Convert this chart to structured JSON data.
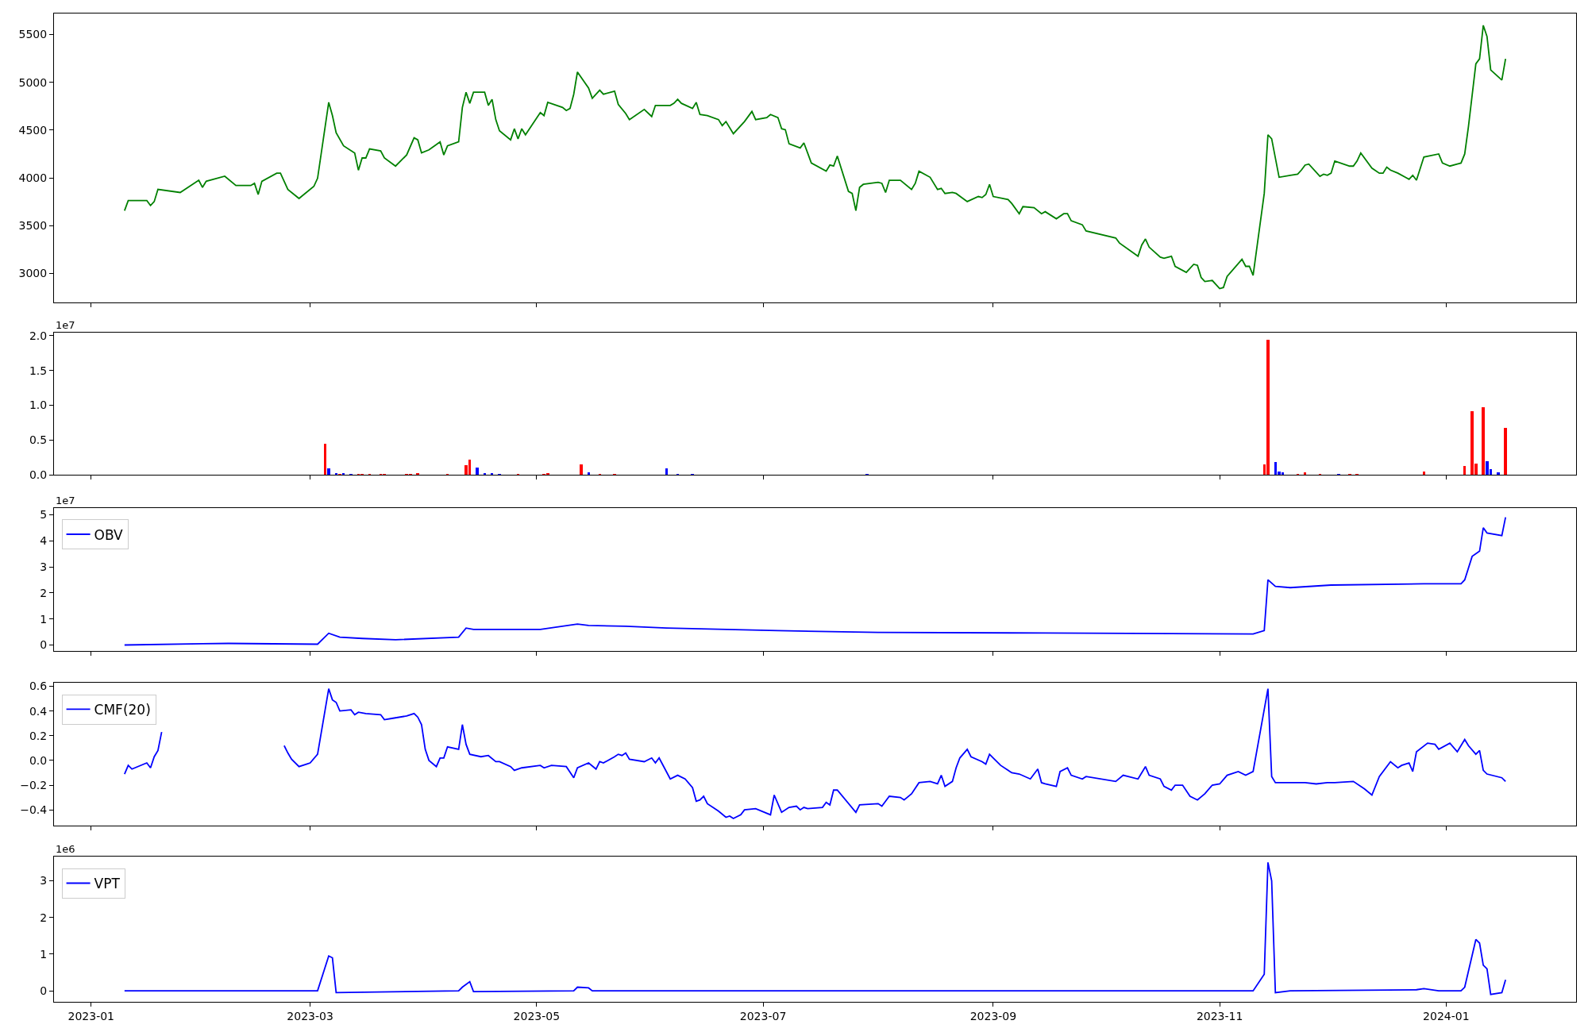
{
  "chart_data": [
    {
      "type": "line",
      "tick_labels": "y",
      "legend": false,
      "xlim": [
        "2022-12-22",
        "2024-02-05"
      ],
      "ylim": [
        2700,
        5720
      ],
      "xticks": [
        {
          "value": "2023-01-01",
          "label": null
        },
        {
          "value": "2023-03-01",
          "label": null
        },
        {
          "value": "2023-05-01",
          "label": null
        },
        {
          "value": "2023-07-01",
          "label": null
        },
        {
          "value": "2023-09-01",
          "label": null
        },
        {
          "value": "2023-11-01",
          "label": null
        },
        {
          "value": "2024-01-01",
          "label": null
        }
      ],
      "yticks": [
        3000,
        3500,
        4000,
        4500,
        5000,
        5500
      ],
      "series": [
        {
          "color": "#008000",
          "x": [
            "2023-01-10",
            "2023-01-11",
            "2023-01-12",
            "2023-01-16",
            "2023-01-17",
            "2023-01-18",
            "2023-01-19",
            "2023-01-25",
            "2023-01-30",
            "2023-01-31",
            "2023-02-01",
            "2023-02-06",
            "2023-02-09",
            "2023-02-13",
            "2023-02-14",
            "2023-02-15",
            "2023-02-16",
            "2023-02-20",
            "2023-02-21",
            "2023-02-23",
            "2023-02-26",
            "2023-03-02",
            "2023-03-03",
            "2023-03-06",
            "2023-03-07",
            "2023-03-08",
            "2023-03-10",
            "2023-03-13",
            "2023-03-14",
            "2023-03-15",
            "2023-03-16",
            "2023-03-17",
            "2023-03-20",
            "2023-03-21",
            "2023-03-24",
            "2023-03-27",
            "2023-03-29",
            "2023-03-30",
            "2023-03-31",
            "2023-04-02",
            "2023-04-05",
            "2023-04-06",
            "2023-04-07",
            "2023-04-10",
            "2023-04-11",
            "2023-04-12",
            "2023-04-13",
            "2023-04-14",
            "2023-04-17",
            "2023-04-18",
            "2023-04-19",
            "2023-04-20",
            "2023-04-21",
            "2023-04-24",
            "2023-04-25",
            "2023-04-26",
            "2023-04-27",
            "2023-04-28",
            "2023-05-02",
            "2023-05-03",
            "2023-05-04",
            "2023-05-08",
            "2023-05-09",
            "2023-05-10",
            "2023-05-11",
            "2023-05-12",
            "2023-05-15",
            "2023-05-16",
            "2023-05-18",
            "2023-05-19",
            "2023-05-22",
            "2023-05-23",
            "2023-05-25",
            "2023-05-26",
            "2023-05-30",
            "2023-06-01",
            "2023-06-02",
            "2023-06-06",
            "2023-06-07",
            "2023-06-08",
            "2023-06-09",
            "2023-06-12",
            "2023-06-13",
            "2023-06-14",
            "2023-06-16",
            "2023-06-19",
            "2023-06-20",
            "2023-06-21",
            "2023-06-23",
            "2023-06-26",
            "2023-06-28",
            "2023-06-29",
            "2023-07-02",
            "2023-07-03",
            "2023-07-05",
            "2023-07-06",
            "2023-07-07",
            "2023-07-08",
            "2023-07-11",
            "2023-07-12",
            "2023-07-13",
            "2023-07-14",
            "2023-07-18",
            "2023-07-19",
            "2023-07-20",
            "2023-07-21",
            "2023-07-24",
            "2023-07-25",
            "2023-07-26",
            "2023-07-27",
            "2023-07-28",
            "2023-08-01",
            "2023-08-02",
            "2023-08-03",
            "2023-08-04",
            "2023-08-07",
            "2023-08-10",
            "2023-08-11",
            "2023-08-12",
            "2023-08-15",
            "2023-08-17",
            "2023-08-18",
            "2023-08-19",
            "2023-08-21",
            "2023-08-22",
            "2023-08-25",
            "2023-08-28",
            "2023-08-29",
            "2023-08-30",
            "2023-08-31",
            "2023-09-01",
            "2023-09-05",
            "2023-09-06",
            "2023-09-08",
            "2023-09-09",
            "2023-09-12",
            "2023-09-14",
            "2023-09-15",
            "2023-09-18",
            "2023-09-20",
            "2023-09-21",
            "2023-09-22",
            "2023-09-25",
            "2023-09-26",
            "2023-10-04",
            "2023-10-05",
            "2023-10-10",
            "2023-10-11",
            "2023-10-12",
            "2023-10-13",
            "2023-10-16",
            "2023-10-17",
            "2023-10-19",
            "2023-10-20",
            "2023-10-23",
            "2023-10-25",
            "2023-10-26",
            "2023-10-27",
            "2023-10-28",
            "2023-10-30",
            "2023-11-01",
            "2023-11-02",
            "2023-11-03",
            "2023-11-07",
            "2023-11-08",
            "2023-11-09",
            "2023-11-10",
            "2023-11-13",
            "2023-11-14",
            "2023-11-15",
            "2023-11-17",
            "2023-11-20",
            "2023-11-22",
            "2023-11-23",
            "2023-11-24",
            "2023-11-25",
            "2023-11-28",
            "2023-11-29",
            "2023-11-30",
            "2023-12-01",
            "2023-12-02",
            "2023-12-06",
            "2023-12-07",
            "2023-12-08",
            "2023-12-09",
            "2023-12-12",
            "2023-12-14",
            "2023-12-15",
            "2023-12-16",
            "2023-12-17",
            "2023-12-19",
            "2023-12-21",
            "2023-12-22",
            "2023-12-23",
            "2023-12-24",
            "2023-12-26",
            "2023-12-30",
            "2023-12-31",
            "2024-01-02",
            "2024-01-04",
            "2024-01-05",
            "2024-01-06",
            "2024-01-07",
            "2024-01-09",
            "2024-01-10",
            "2024-01-11",
            "2024-01-12",
            "2024-01-13",
            "2024-01-16",
            "2024-01-17"
          ],
          "values": [
            3657,
            3763,
            3763,
            3763,
            3710,
            3752,
            3879,
            3847,
            3975,
            3900,
            3964,
            4017,
            3920,
            3920,
            3943,
            3826,
            3964,
            4049,
            4049,
            3879,
            3784,
            3911,
            3996,
            4790,
            4652,
            4472,
            4335,
            4260,
            4080,
            4208,
            4208,
            4303,
            4282,
            4208,
            4123,
            4240,
            4419,
            4398,
            4261,
            4293,
            4377,
            4240,
            4335,
            4377,
            4737,
            4896,
            4780,
            4896,
            4896,
            4758,
            4822,
            4610,
            4493,
            4398,
            4514,
            4408,
            4514,
            4451,
            4684,
            4652,
            4790,
            4737,
            4705,
            4726,
            4875,
            5108,
            4939,
            4832,
            4917,
            4875,
            4907,
            4769,
            4674,
            4610,
            4716,
            4642,
            4758,
            4758,
            4780,
            4822,
            4780,
            4726,
            4790,
            4663,
            4652,
            4610,
            4547,
            4589,
            4462,
            4589,
            4695,
            4610,
            4631,
            4663,
            4631,
            4514,
            4504,
            4356,
            4313,
            4366,
            4261,
            4155,
            4070,
            4134,
            4123,
            4229,
            3858,
            3837,
            3657,
            3900,
            3932,
            3953,
            3943,
            3847,
            3975,
            3975,
            3879,
            3943,
            4070,
            4006,
            3879,
            3890,
            3837,
            3847,
            3837,
            3752,
            3805,
            3794,
            3826,
            3932,
            3805,
            3773,
            3731,
            3625,
            3699,
            3688,
            3625,
            3646,
            3572,
            3625,
            3625,
            3551,
            3509,
            3445,
            3371,
            3318,
            3180,
            3297,
            3360,
            3275,
            3170,
            3159,
            3180,
            3074,
            3011,
            3095,
            3085,
            2958,
            2915,
            2926,
            2841,
            2852,
            2968,
            3148,
            3074,
            3074,
            2980,
            3837,
            4451,
            4409,
            4006,
            4027,
            4038,
            4081,
            4134,
            4144,
            4017,
            4038,
            4027,
            4049,
            4176,
            4123,
            4123,
            4176,
            4260,
            4102,
            4049,
            4049,
            4112,
            4081,
            4049,
            4006,
            3985,
            4027,
            3975,
            4218,
            4250,
            4155,
            4123,
            4144,
            4155,
            4250,
            4536,
            5193,
            5246,
            5596,
            5479,
            5129,
            5023,
            5246
          ]
        }
      ]
    },
    {
      "type": "bar",
      "tick_labels": "y",
      "legend": false,
      "xlim": [
        "2022-12-22",
        "2024-02-05"
      ],
      "ylim": [
        0,
        2.04
      ],
      "xticks": [
        {
          "value": "2023-01-01",
          "label": null
        },
        {
          "value": "2023-03-01",
          "label": null
        },
        {
          "value": "2023-05-01",
          "label": null
        },
        {
          "value": "2023-07-01",
          "label": null
        },
        {
          "value": "2023-09-01",
          "label": null
        },
        {
          "value": "2023-11-01",
          "label": null
        },
        {
          "value": "2024-01-01",
          "label": null
        }
      ],
      "yticks": [
        {
          "value": 0,
          "label": "0.0"
        },
        {
          "value": 0.5,
          "label": "0.5"
        },
        {
          "value": 1,
          "label": "1.0"
        },
        {
          "value": 1.5,
          "label": "1.5"
        },
        {
          "value": 2,
          "label": "2.0"
        }
      ],
      "annotations": [
        "1e7"
      ],
      "series": [
        {
          "color": "#ff0000",
          "x": [
            "2023-03-05",
            "2023-03-09",
            "2023-03-14",
            "2023-03-15",
            "2023-03-17",
            "2023-03-20",
            "2023-03-21",
            "2023-03-27",
            "2023-03-28",
            "2023-03-30",
            "2023-04-07",
            "2023-04-12",
            "2023-04-13",
            "2023-04-26",
            "2023-05-03",
            "2023-05-04",
            "2023-05-13",
            "2023-05-18",
            "2023-05-22",
            "2023-11-13",
            "2023-11-14",
            "2023-11-22",
            "2023-11-24",
            "2023-11-28",
            "2023-12-06",
            "2023-12-08",
            "2023-12-26",
            "2024-01-06",
            "2024-01-08",
            "2024-01-09",
            "2024-01-11",
            "2024-01-17"
          ],
          "values": [
            0.45,
            0.02,
            0.02,
            0.02,
            0.02,
            0.02,
            0.02,
            0.02,
            0.02,
            0.03,
            0.02,
            0.14,
            0.22,
            0.02,
            0.02,
            0.03,
            0.15,
            0.02,
            0.02,
            0.15,
            1.94,
            0.02,
            0.04,
            0.02,
            0.02,
            0.02,
            0.05,
            0.13,
            0.91,
            0.16,
            0.965,
            0.67
          ]
        },
        {
          "color": "#0000ff",
          "x": [
            "2023-03-06",
            "2023-03-08",
            "2023-03-10",
            "2023-03-12",
            "2023-04-15",
            "2023-04-17",
            "2023-04-19",
            "2023-04-21",
            "2023-05-15",
            "2023-06-05",
            "2023-06-08",
            "2023-06-12",
            "2023-07-29",
            "2023-11-16",
            "2023-11-17",
            "2023-11-18",
            "2023-12-03",
            "2024-01-12",
            "2024-01-13",
            "2024-01-15"
          ],
          "values": [
            0.09,
            0.03,
            0.03,
            0.02,
            0.1,
            0.03,
            0.03,
            0.02,
            0.04,
            0.09,
            0.02,
            0.02,
            0.02,
            0.18,
            0.05,
            0.04,
            0.02,
            0.2,
            0.08,
            0.04
          ]
        }
      ]
    },
    {
      "type": "line",
      "tick_labels": "y",
      "legend": "top left",
      "xlim": [
        "2022-12-22",
        "2024-02-05"
      ],
      "ylim": [
        -0.23,
        5.27
      ],
      "xticks": [
        {
          "value": "2023-01-01",
          "label": null
        },
        {
          "value": "2023-03-01",
          "label": null
        },
        {
          "value": "2023-05-01",
          "label": null
        },
        {
          "value": "2023-07-01",
          "label": null
        },
        {
          "value": "2023-09-01",
          "label": null
        },
        {
          "value": "2023-11-01",
          "label": null
        },
        {
          "value": "2024-01-01",
          "label": null
        }
      ],
      "yticks": [
        0,
        1,
        2,
        3,
        4,
        5
      ],
      "annotations": [
        "1e7"
      ],
      "series": [
        {
          "name": "OBV",
          "color": "#0000ff",
          "x": [
            "2023-01-10",
            "2023-01-31",
            "2023-02-07",
            "2023-03-03",
            "2023-03-06",
            "2023-03-09",
            "2023-03-15",
            "2023-03-24",
            "2023-04-10",
            "2023-04-12",
            "2023-04-14",
            "2023-05-02",
            "2023-05-12",
            "2023-05-15",
            "2023-05-25",
            "2023-06-05",
            "2023-07-05",
            "2023-08-01",
            "2023-09-15",
            "2023-11-10",
            "2023-11-13",
            "2023-11-14",
            "2023-11-16",
            "2023-11-20",
            "2023-12-01",
            "2023-12-26",
            "2024-01-05",
            "2024-01-06",
            "2024-01-08",
            "2024-01-10",
            "2024-01-11",
            "2024-01-12",
            "2024-01-16",
            "2024-01-17"
          ],
          "values": [
            0,
            0.05,
            0.06,
            0.03,
            0.45,
            0.3,
            0.25,
            0.2,
            0.3,
            0.65,
            0.6,
            0.6,
            0.8,
            0.75,
            0.72,
            0.65,
            0.55,
            0.48,
            0.46,
            0.42,
            0.55,
            2.5,
            2.25,
            2.2,
            2.3,
            2.35,
            2.35,
            2.5,
            3.4,
            3.6,
            4.5,
            4.3,
            4.2,
            4.9
          ]
        }
      ]
    },
    {
      "type": "line",
      "tick_labels": "y",
      "legend": "top left",
      "xlim": [
        "2022-12-22",
        "2024-02-05"
      ],
      "ylim": [
        -0.53,
        0.63
      ],
      "xticks": [
        {
          "value": "2023-01-01",
          "label": null
        },
        {
          "value": "2023-03-01",
          "label": null
        },
        {
          "value": "2023-05-01",
          "label": null
        },
        {
          "value": "2023-07-01",
          "label": null
        },
        {
          "value": "2023-09-01",
          "label": null
        },
        {
          "value": "2023-11-01",
          "label": null
        },
        {
          "value": "2024-01-01",
          "label": null
        }
      ],
      "yticks": [
        {
          "value": -0.4,
          "label": "−0.4"
        },
        {
          "value": -0.2,
          "label": "−0.2"
        },
        {
          "value": 0,
          "label": "0.0"
        },
        {
          "value": 0.2,
          "label": "0.2"
        },
        {
          "value": 0.4,
          "label": "0.4"
        },
        {
          "value": 0.6,
          "label": "0.6"
        }
      ],
      "series": [
        {
          "name": "CMF(20)",
          "color": "#0000ff",
          "x": [
            "2023-01-10",
            "2023-01-11",
            "2023-01-12",
            "2023-01-16",
            "2023-01-17",
            "2023-01-18",
            "2023-01-19",
            "2023-01-20",
            "2023-02-05",
            "2023-02-22",
            "2023-02-23",
            "2023-02-24",
            "2023-02-26",
            "2023-02-28",
            "2023-03-01",
            "2023-03-03",
            "2023-03-06",
            "2023-03-07",
            "2023-03-08",
            "2023-03-09",
            "2023-03-12",
            "2023-03-13",
            "2023-03-14",
            "2023-03-16",
            "2023-03-20",
            "2023-03-21",
            "2023-03-23",
            "2023-03-27",
            "2023-03-29",
            "2023-03-30",
            "2023-03-31",
            "2023-04-01",
            "2023-04-02",
            "2023-04-04",
            "2023-04-05",
            "2023-04-06",
            "2023-04-07",
            "2023-04-10",
            "2023-04-11",
            "2023-04-12",
            "2023-04-13",
            "2023-04-16",
            "2023-04-18",
            "2023-04-20",
            "2023-04-21",
            "2023-04-24",
            "2023-04-25",
            "2023-04-27",
            "2023-05-02",
            "2023-05-03",
            "2023-05-05",
            "2023-05-09",
            "2023-05-11",
            "2023-05-12",
            "2023-05-15",
            "2023-05-17",
            "2023-05-18",
            "2023-05-19",
            "2023-05-22",
            "2023-05-23",
            "2023-05-24",
            "2023-05-25",
            "2023-05-26",
            "2023-05-30",
            "2023-06-01",
            "2023-06-02",
            "2023-06-03",
            "2023-06-06",
            "2023-06-08",
            "2023-06-10",
            "2023-06-12",
            "2023-06-13",
            "2023-06-14",
            "2023-06-15",
            "2023-06-16",
            "2023-06-19",
            "2023-06-21",
            "2023-06-22",
            "2023-06-23",
            "2023-06-25",
            "2023-06-26",
            "2023-06-29",
            "2023-07-03",
            "2023-07-04",
            "2023-07-06",
            "2023-07-08",
            "2023-07-10",
            "2023-07-11",
            "2023-07-12",
            "2023-07-13",
            "2023-07-17",
            "2023-07-18",
            "2023-07-19",
            "2023-07-20",
            "2023-07-21",
            "2023-07-26",
            "2023-07-27",
            "2023-08-01",
            "2023-08-02",
            "2023-08-03",
            "2023-08-04",
            "2023-08-07",
            "2023-08-08",
            "2023-08-10",
            "2023-08-12",
            "2023-08-15",
            "2023-08-17",
            "2023-08-18",
            "2023-08-19",
            "2023-08-21",
            "2023-08-22",
            "2023-08-23",
            "2023-08-25",
            "2023-08-26",
            "2023-08-29",
            "2023-08-30",
            "2023-08-31",
            "2023-09-01",
            "2023-09-03",
            "2023-09-06",
            "2023-09-08",
            "2023-09-11",
            "2023-09-13",
            "2023-09-14",
            "2023-09-15",
            "2023-09-18",
            "2023-09-19",
            "2023-09-21",
            "2023-09-22",
            "2023-09-25",
            "2023-09-26",
            "2023-10-04",
            "2023-10-06",
            "2023-10-10",
            "2023-10-12",
            "2023-10-13",
            "2023-10-16",
            "2023-10-17",
            "2023-10-19",
            "2023-10-20",
            "2023-10-22",
            "2023-10-24",
            "2023-10-26",
            "2023-10-28",
            "2023-10-30",
            "2023-11-01",
            "2023-11-03",
            "2023-11-06",
            "2023-11-08",
            "2023-11-10",
            "2023-11-14",
            "2023-11-15",
            "2023-11-16",
            "2023-11-20",
            "2023-11-24",
            "2023-11-27",
            "2023-11-30",
            "2023-12-02",
            "2023-12-07",
            "2023-12-10",
            "2023-12-12",
            "2023-12-14",
            "2023-12-17",
            "2023-12-19",
            "2023-12-20",
            "2023-12-22",
            "2023-12-23",
            "2023-12-24",
            "2023-12-27",
            "2023-12-29",
            "2023-12-30",
            "2024-01-02",
            "2024-01-04",
            "2024-01-06",
            "2024-01-07",
            "2024-01-09",
            "2024-01-10",
            "2024-01-11",
            "2024-01-12",
            "2024-01-16",
            "2024-01-17"
          ],
          "values": [
            -0.11,
            -0.04,
            -0.07,
            -0.02,
            -0.06,
            0.03,
            0.08,
            0.23,
            null,
            0.12,
            0.06,
            0.01,
            -0.05,
            -0.03,
            -0.02,
            0.05,
            0.58,
            0.49,
            0.47,
            0.4,
            0.41,
            0.37,
            0.39,
            0.38,
            0.37,
            0.33,
            0.34,
            0.36,
            0.38,
            0.35,
            0.29,
            0.09,
            0.0,
            -0.05,
            0.02,
            0.02,
            0.11,
            0.09,
            0.29,
            0.13,
            0.05,
            0.03,
            0.04,
            -0.01,
            -0.01,
            -0.05,
            -0.08,
            -0.06,
            -0.04,
            -0.06,
            -0.04,
            -0.05,
            -0.14,
            -0.06,
            -0.02,
            -0.07,
            -0.01,
            -0.02,
            0.03,
            0.05,
            0.04,
            0.06,
            0.01,
            -0.01,
            0.02,
            -0.02,
            0.02,
            -0.15,
            -0.12,
            -0.15,
            -0.22,
            -0.33,
            -0.32,
            -0.29,
            -0.35,
            -0.41,
            -0.46,
            -0.45,
            -0.47,
            -0.44,
            -0.4,
            -0.39,
            -0.44,
            -0.28,
            -0.42,
            -0.38,
            -0.37,
            -0.4,
            -0.38,
            -0.39,
            -0.38,
            -0.34,
            -0.36,
            -0.24,
            -0.24,
            -0.42,
            -0.36,
            -0.35,
            -0.37,
            -0.33,
            -0.29,
            -0.3,
            -0.32,
            -0.27,
            -0.18,
            -0.17,
            -0.19,
            -0.12,
            -0.21,
            -0.17,
            -0.06,
            0.02,
            0.09,
            0.03,
            -0.01,
            -0.03,
            0.05,
            0.02,
            -0.04,
            -0.1,
            -0.11,
            -0.15,
            -0.07,
            -0.18,
            -0.19,
            -0.21,
            -0.09,
            -0.06,
            -0.12,
            -0.15,
            -0.13,
            -0.17,
            -0.12,
            -0.15,
            -0.05,
            -0.12,
            -0.15,
            -0.21,
            -0.24,
            -0.2,
            -0.2,
            -0.29,
            -0.32,
            -0.27,
            -0.2,
            -0.19,
            -0.12,
            -0.09,
            -0.12,
            -0.09,
            0.58,
            -0.13,
            -0.18,
            -0.18,
            -0.18,
            -0.19,
            -0.18,
            -0.18,
            -0.17,
            -0.23,
            -0.28,
            -0.13,
            -0.01,
            -0.06,
            -0.04,
            -0.02,
            -0.09,
            0.07,
            0.14,
            0.13,
            0.09,
            0.14,
            0.07,
            0.17,
            0.12,
            0.05,
            0.08,
            -0.08,
            -0.11,
            -0.14,
            -0.17
          ]
        }
      ]
    },
    {
      "type": "line",
      "legend": "top left",
      "xlim": [
        "2022-12-22",
        "2024-02-05"
      ],
      "ylim": [
        -0.3,
        3.66
      ],
      "xticks": [
        {
          "value": "2023-01-01",
          "label": "2023-01"
        },
        {
          "value": "2023-03-01",
          "label": "2023-03"
        },
        {
          "value": "2023-05-01",
          "label": "2023-05"
        },
        {
          "value": "2023-07-01",
          "label": "2023-07"
        },
        {
          "value": "2023-09-01",
          "label": "2023-09"
        },
        {
          "value": "2023-11-01",
          "label": "2023-11"
        },
        {
          "value": "2024-01-01",
          "label": "2024-01"
        }
      ],
      "yticks": [
        0,
        1,
        2,
        3
      ],
      "annotations": [
        "1e6"
      ],
      "series": [
        {
          "name": "VPT",
          "color": "#0000ff",
          "x": [
            "2023-01-10",
            "2023-03-03",
            "2023-03-06",
            "2023-03-07",
            "2023-03-08",
            "2023-04-10",
            "2023-04-11",
            "2023-04-13",
            "2023-04-14",
            "2023-05-11",
            "2023-05-12",
            "2023-05-15",
            "2023-05-16",
            "2023-11-10",
            "2023-11-13",
            "2023-11-14",
            "2023-11-15",
            "2023-11-16",
            "2023-11-20",
            "2023-12-24",
            "2023-12-26",
            "2023-12-30",
            "2024-01-05",
            "2024-01-06",
            "2024-01-09",
            "2024-01-10",
            "2024-01-11",
            "2024-01-12",
            "2024-01-13",
            "2024-01-16",
            "2024-01-17"
          ],
          "values": [
            0,
            0,
            0.95,
            0.9,
            -0.05,
            0,
            0.1,
            0.25,
            -0.02,
            0,
            0.1,
            0.08,
            0,
            0,
            0.45,
            3.5,
            3.0,
            -0.05,
            0,
            0.03,
            0.06,
            0,
            0,
            0.1,
            1.4,
            1.3,
            0.7,
            0.6,
            -0.1,
            -0.05,
            0.3
          ]
        }
      ]
    }
  ]
}
